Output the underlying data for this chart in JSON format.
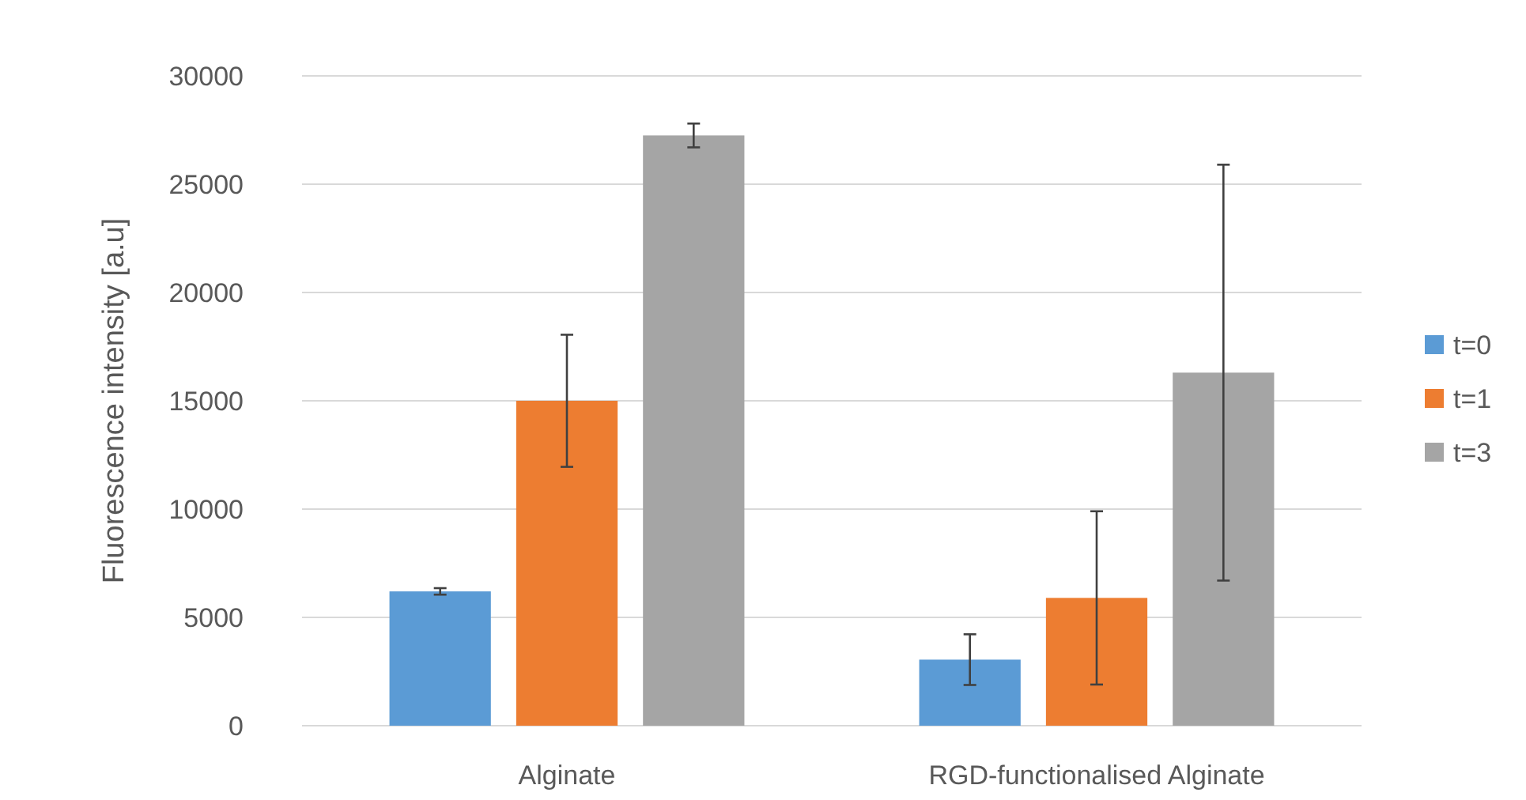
{
  "chart_data": {
    "type": "bar",
    "ylabel": "Fluorescence intensity [a.u]",
    "categories": [
      "Alginate",
      "RGD-functionalised Alginate"
    ],
    "series": [
      {
        "name": "t=0",
        "color": "#5b9bd5",
        "values": [
          6200,
          3050
        ],
        "errors": [
          150,
          1170
        ]
      },
      {
        "name": "t=1",
        "color": "#ed7d31",
        "values": [
          15000,
          5900
        ],
        "errors": [
          3050,
          4000
        ]
      },
      {
        "name": "t=3",
        "color": "#a5a5a5",
        "values": [
          27250,
          16300
        ],
        "errors": [
          550,
          9600
        ]
      }
    ],
    "ylim": [
      0,
      30000
    ],
    "yticks": [
      0,
      5000,
      10000,
      15000,
      20000,
      25000,
      30000
    ],
    "grid": "y",
    "legend": "right"
  }
}
